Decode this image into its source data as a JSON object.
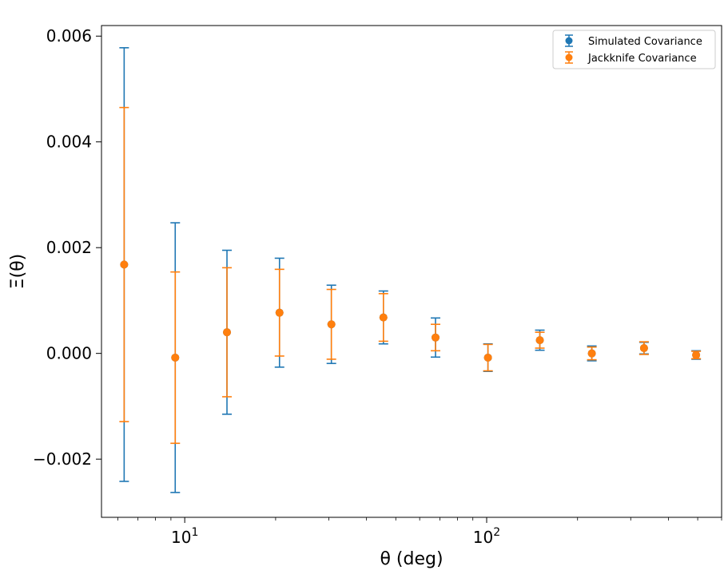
{
  "chart_data": {
    "type": "scatter",
    "title": "",
    "xlabel": "θ (deg)",
    "ylabel": "Ξ(θ)",
    "xscale": "log",
    "xlim": [
      5.3,
      600
    ],
    "ylim": [
      -0.0031,
      0.0062
    ],
    "grid": false,
    "legend_position": "top-right",
    "x_ticks": [
      {
        "value": 10,
        "base": "10",
        "exp": "1"
      },
      {
        "value": 100,
        "base": "10",
        "exp": "2"
      }
    ],
    "y_ticks": [
      {
        "value": -0.002,
        "label": "−0.002"
      },
      {
        "value": 0.0,
        "label": "0.000"
      },
      {
        "value": 0.002,
        "label": "0.002"
      },
      {
        "value": 0.004,
        "label": "0.004"
      },
      {
        "value": 0.006,
        "label": "0.006"
      }
    ],
    "x": [
      6.3,
      9.3,
      13.8,
      20.6,
      30.6,
      45.5,
      67.7,
      101,
      150,
      223,
      332,
      494
    ],
    "series": [
      {
        "name": "Simulated Covariance",
        "color": "#1f77b4",
        "marker": "circle",
        "y": [
          0.00168,
          -8e-05,
          0.0004,
          0.00077,
          0.00055,
          0.00068,
          0.0003,
          -8e-05,
          0.00025,
          0.0,
          0.0001,
          -3e-05
        ],
        "yerr": [
          0.0041,
          0.00255,
          0.00155,
          0.00103,
          0.00074,
          0.0005,
          0.00037,
          0.00026,
          0.00019,
          0.00014,
          0.00011,
          8e-05
        ]
      },
      {
        "name": "Jackknife Covariance",
        "color": "#ff7f0e",
        "marker": "circle",
        "y": [
          0.00168,
          -8e-05,
          0.0004,
          0.00077,
          0.00055,
          0.00068,
          0.0003,
          -8e-05,
          0.00025,
          0.0,
          0.0001,
          -3e-05
        ],
        "yerr": [
          0.00297,
          0.00162,
          0.00122,
          0.00082,
          0.00066,
          0.00045,
          0.00025,
          0.00025,
          0.00015,
          0.00012,
          0.00012,
          7e-05
        ]
      }
    ]
  }
}
